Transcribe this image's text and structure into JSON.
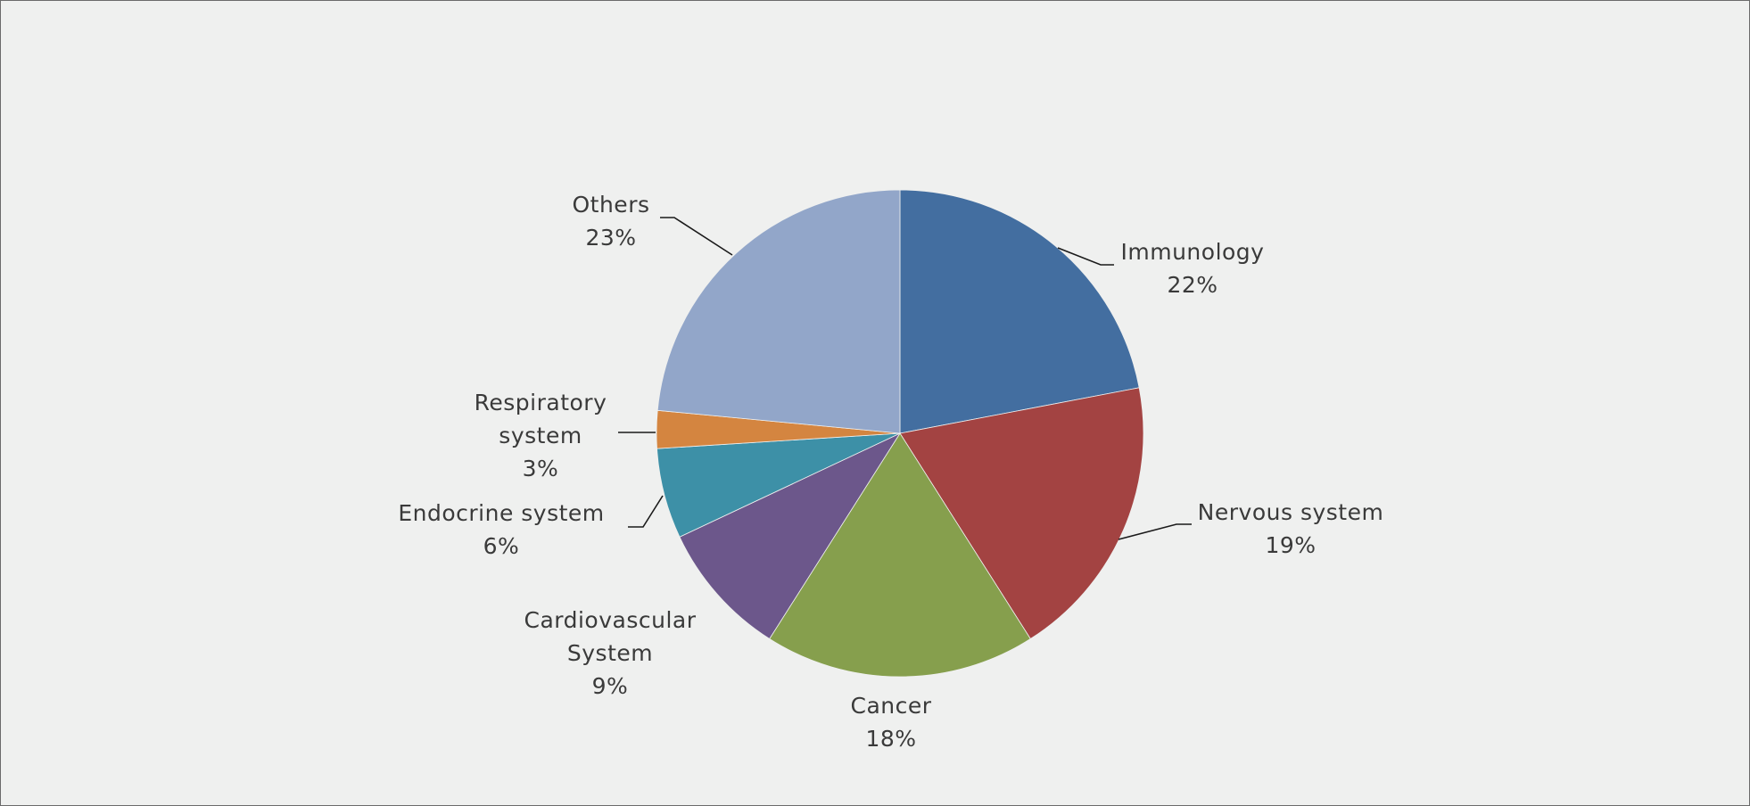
{
  "chart_data": {
    "type": "pie",
    "title": "",
    "start": "12 o'clock",
    "direction": "clockwise",
    "slices": [
      {
        "label": [
          "Immunology"
        ],
        "value_label": "22%",
        "value": 22,
        "color": "#436ea0"
      },
      {
        "label": [
          "Nervous system"
        ],
        "value_label": "19%",
        "value": 19,
        "color": "#a34342"
      },
      {
        "label": [
          "Cancer"
        ],
        "value_label": "18%",
        "value": 18,
        "color": "#869f4d"
      },
      {
        "label": [
          "Cardiovascular",
          "System"
        ],
        "value_label": "9%",
        "value": 9,
        "color": "#6c578b"
      },
      {
        "label": [
          "Endocrine system"
        ],
        "value_label": "6%",
        "value": 6,
        "color": "#3d90a7"
      },
      {
        "label": [
          "Respiratory",
          "system"
        ],
        "value_label": "3%",
        "value": 2.5,
        "color": "#d48540"
      },
      {
        "label": [
          "Others"
        ],
        "value_label": "23%",
        "value": 23.5,
        "color": "#92a6c9"
      }
    ],
    "legend": "none",
    "data_labels": "outside, category name and percentage"
  }
}
